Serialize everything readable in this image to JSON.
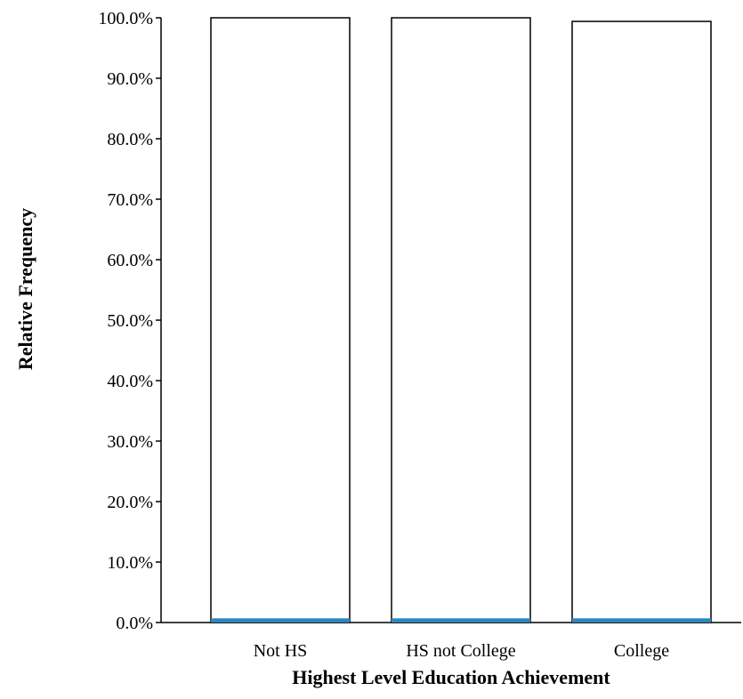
{
  "chart_data": {
    "type": "bar",
    "title": "",
    "xlabel": "Highest Level Education Achievement",
    "ylabel": "Relative Frequency",
    "categories": [
      "Not HS",
      "HS not College",
      "College"
    ],
    "series": [
      {
        "values": [
          100.0,
          100.0,
          99.4
        ],
        "color": "#ffffff",
        "stroke": "#000000"
      },
      {
        "values": [
          0.4,
          0.4,
          0.4
        ],
        "color": "#2e86c1"
      }
    ],
    "ylim": [
      0,
      100
    ],
    "yticks": [
      "0.0%",
      "10.0%",
      "20.0%",
      "30.0%",
      "40.0%",
      "50.0%",
      "60.0%",
      "70.0%",
      "80.0%",
      "90.0%",
      "100.0%"
    ],
    "ytick_values": [
      0,
      10,
      20,
      30,
      40,
      50,
      60,
      70,
      80,
      90,
      100
    ],
    "grid": false,
    "legend": "none"
  }
}
